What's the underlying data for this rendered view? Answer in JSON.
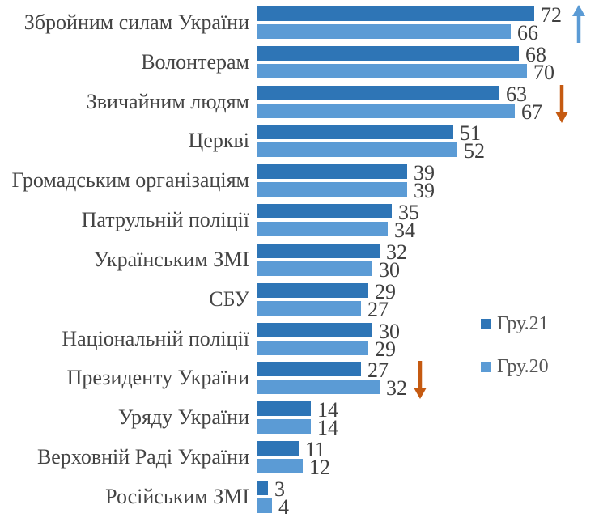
{
  "chart_data": {
    "type": "bar",
    "orientation": "horizontal",
    "title": "",
    "xlabel": "",
    "ylabel": "",
    "xlim": [
      0,
      75
    ],
    "axes_visible": false,
    "grid": false,
    "legend_position": "right-middle",
    "categories": [
      "Збройним силам України",
      "Волонтерам",
      "Звичайним людям",
      "Церкві",
      "Громадським організаціям",
      "Патрульній поліції",
      "Українським ЗМІ",
      "СБУ",
      "Національній поліції",
      "Президенту України",
      "Уряду України",
      "Верховній Раді України",
      "Російським ЗМІ"
    ],
    "series": [
      {
        "name": "Гру.21",
        "color": "#2E75B6",
        "values": [
          72,
          68,
          63,
          51,
          39,
          35,
          32,
          29,
          30,
          27,
          14,
          11,
          3
        ]
      },
      {
        "name": "Гру.20",
        "color": "#5B9BD5",
        "values": [
          66,
          70,
          67,
          52,
          39,
          34,
          30,
          27,
          29,
          32,
          14,
          12,
          4
        ]
      }
    ],
    "annotations": [
      {
        "type": "arrow-up",
        "color": "#5B9BD5",
        "category": "Збройним силам України"
      },
      {
        "type": "arrow-down",
        "color": "#C55A11",
        "category": "Звичайним людям"
      },
      {
        "type": "arrow-down",
        "color": "#C55A11",
        "category": "Президенту України"
      }
    ]
  },
  "legend": {
    "items": [
      {
        "label": "Гру.21",
        "color": "#2E75B6"
      },
      {
        "label": "Гру.20",
        "color": "#5B9BD5"
      }
    ]
  }
}
